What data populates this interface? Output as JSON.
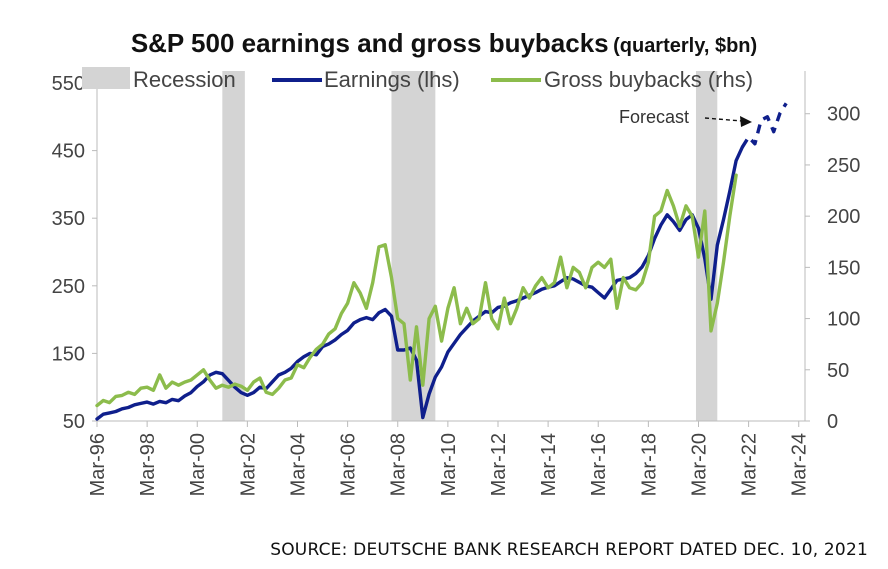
{
  "chart_data": {
    "type": "line",
    "title": "S&P 500 earnings and gross buybacks",
    "subtitle": "(quarterly, $bn)",
    "source": "SOURCE: DEUTSCHE BANK RESEARCH REPORT DATED DEC. 10, 2021",
    "legend": {
      "placement": "top",
      "items": [
        {
          "label": "Recession",
          "kind": "band",
          "color": "#d4d4d4"
        },
        {
          "label": "Earnings (lhs)",
          "kind": "line",
          "color": "#0f1f8c"
        },
        {
          "label": "Gross buybacks (rhs)",
          "kind": "line",
          "color": "#8cbc4c"
        }
      ]
    },
    "annotation": "Forecast",
    "y_left": {
      "ticks": [
        50,
        150,
        250,
        350,
        450,
        550
      ],
      "range": [
        50,
        550
      ]
    },
    "y_right": {
      "ticks": [
        0,
        50,
        100,
        150,
        200,
        250,
        300
      ],
      "range": [
        0,
        330
      ]
    },
    "x_ticks": [
      "Mar-96",
      "Mar-98",
      "Mar-00",
      "Mar-02",
      "Mar-04",
      "Mar-06",
      "Mar-08",
      "Mar-10",
      "Mar-12",
      "Mar-14",
      "Mar-16",
      "Mar-18",
      "Mar-20",
      "Mar-22",
      "Mar-24"
    ],
    "x_range": [
      1996.0,
      2024.25
    ],
    "recessions": [
      [
        2001.0,
        2001.9
      ],
      [
        2007.75,
        2009.5
      ],
      [
        2019.9,
        2020.75
      ]
    ],
    "series": [
      {
        "name": "Earnings (lhs)",
        "axis": "left",
        "color": "#0f1f8c",
        "x": [
          1996.0,
          1996.25,
          1996.5,
          1996.75,
          1997.0,
          1997.25,
          1997.5,
          1997.75,
          1998.0,
          1998.25,
          1998.5,
          1998.75,
          1999.0,
          1999.25,
          1999.5,
          1999.75,
          2000.0,
          2000.25,
          2000.5,
          2000.75,
          2001.0,
          2001.25,
          2001.5,
          2001.75,
          2002.0,
          2002.25,
          2002.5,
          2002.75,
          2003.0,
          2003.25,
          2003.5,
          2003.75,
          2004.0,
          2004.25,
          2004.5,
          2004.75,
          2005.0,
          2005.25,
          2005.5,
          2005.75,
          2006.0,
          2006.25,
          2006.5,
          2006.75,
          2007.0,
          2007.25,
          2007.5,
          2007.75,
          2008.0,
          2008.25,
          2008.5,
          2008.75,
          2009.0,
          2009.25,
          2009.5,
          2009.75,
          2010.0,
          2010.25,
          2010.5,
          2010.75,
          2011.0,
          2011.25,
          2011.5,
          2011.75,
          2012.0,
          2012.25,
          2012.5,
          2012.75,
          2013.0,
          2013.25,
          2013.5,
          2013.75,
          2014.0,
          2014.25,
          2014.5,
          2014.75,
          2015.0,
          2015.25,
          2015.5,
          2015.75,
          2016.0,
          2016.25,
          2016.5,
          2016.75,
          2017.0,
          2017.25,
          2017.5,
          2017.75,
          2018.0,
          2018.25,
          2018.5,
          2018.75,
          2019.0,
          2019.25,
          2019.5,
          2019.75,
          2020.0,
          2020.25,
          2020.5,
          2020.75,
          2021.0,
          2021.25,
          2021.5,
          2021.75
        ],
        "values": [
          53,
          60,
          62,
          64,
          68,
          70,
          74,
          76,
          78,
          75,
          79,
          77,
          82,
          80,
          87,
          92,
          101,
          108,
          118,
          122,
          120,
          110,
          100,
          92,
          88,
          92,
          100,
          98,
          108,
          118,
          122,
          128,
          138,
          145,
          150,
          148,
          160,
          164,
          170,
          178,
          184,
          195,
          200,
          203,
          200,
          210,
          215,
          205,
          155,
          155,
          158,
          140,
          55,
          90,
          115,
          130,
          152,
          165,
          178,
          188,
          198,
          205,
          212,
          210,
          218,
          220,
          225,
          228,
          232,
          236,
          240,
          245,
          248,
          250,
          256,
          262,
          260,
          255,
          250,
          248,
          240,
          232,
          245,
          258,
          260,
          262,
          268,
          278,
          295,
          320,
          340,
          355,
          345,
          332,
          348,
          355,
          335,
          290,
          230,
          310,
          348,
          390,
          435,
          455
        ]
      },
      {
        "name": "Earnings forecast",
        "axis": "left",
        "color": "#0f1f8c",
        "dashed": true,
        "x": [
          2021.75,
          2022.0,
          2022.25,
          2022.5,
          2022.75,
          2023.0,
          2023.25,
          2023.5
        ],
        "values": [
          455,
          470,
          460,
          495,
          500,
          478,
          505,
          520
        ]
      },
      {
        "name": "Gross buybacks (rhs)",
        "axis": "right",
        "color": "#8cbc4c",
        "x": [
          1996.0,
          1996.25,
          1996.5,
          1996.75,
          1997.0,
          1997.25,
          1997.5,
          1997.75,
          1998.0,
          1998.25,
          1998.5,
          1998.75,
          1999.0,
          1999.25,
          1999.5,
          1999.75,
          2000.0,
          2000.25,
          2000.5,
          2000.75,
          2001.0,
          2001.25,
          2001.5,
          2001.75,
          2002.0,
          2002.25,
          2002.5,
          2002.75,
          2003.0,
          2003.25,
          2003.5,
          2003.75,
          2004.0,
          2004.25,
          2004.5,
          2004.75,
          2005.0,
          2005.25,
          2005.5,
          2005.75,
          2006.0,
          2006.25,
          2006.5,
          2006.75,
          2007.0,
          2007.25,
          2007.5,
          2007.75,
          2008.0,
          2008.25,
          2008.5,
          2008.75,
          2009.0,
          2009.25,
          2009.5,
          2009.75,
          2010.0,
          2010.25,
          2010.5,
          2010.75,
          2011.0,
          2011.25,
          2011.5,
          2011.75,
          2012.0,
          2012.25,
          2012.5,
          2012.75,
          2013.0,
          2013.25,
          2013.5,
          2013.75,
          2014.0,
          2014.25,
          2014.5,
          2014.75,
          2015.0,
          2015.25,
          2015.5,
          2015.75,
          2016.0,
          2016.25,
          2016.5,
          2016.75,
          2017.0,
          2017.25,
          2017.5,
          2017.75,
          2018.0,
          2018.25,
          2018.5,
          2018.75,
          2019.0,
          2019.25,
          2019.5,
          2019.75,
          2020.0,
          2020.25,
          2020.5,
          2020.75,
          2021.0,
          2021.25,
          2021.5
        ],
        "values": [
          15,
          20,
          18,
          24,
          25,
          28,
          26,
          32,
          33,
          30,
          45,
          32,
          38,
          35,
          38,
          40,
          45,
          50,
          40,
          32,
          35,
          33,
          36,
          34,
          30,
          38,
          42,
          28,
          26,
          32,
          40,
          42,
          55,
          52,
          62,
          70,
          75,
          85,
          90,
          105,
          115,
          135,
          125,
          110,
          135,
          170,
          172,
          140,
          100,
          95,
          40,
          92,
          35,
          100,
          112,
          78,
          110,
          130,
          95,
          110,
          95,
          100,
          135,
          100,
          90,
          120,
          95,
          110,
          130,
          120,
          132,
          140,
          130,
          135,
          160,
          130,
          150,
          145,
          130,
          150,
          155,
          150,
          158,
          110,
          140,
          130,
          128,
          135,
          155,
          200,
          205,
          225,
          210,
          190,
          210,
          200,
          160,
          205,
          88,
          115,
          155,
          200,
          240
        ]
      }
    ]
  }
}
